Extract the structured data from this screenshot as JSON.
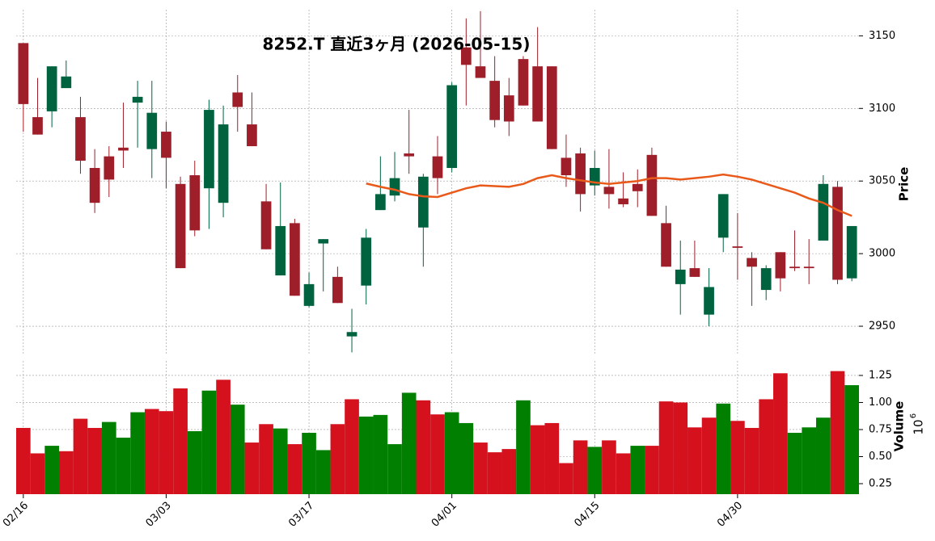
{
  "chart_data": {
    "type": "candlestick",
    "title": "8252.T  直近3ヶ月  (2026-05-15)",
    "ylabel": "Price",
    "y2label": "Volume",
    "y2_offset": {
      "base": "10",
      "exponent": "6"
    },
    "categories": [
      "02/16",
      null,
      null,
      null,
      null,
      null,
      null,
      null,
      null,
      null,
      "03/03",
      null,
      null,
      null,
      null,
      null,
      null,
      null,
      null,
      null,
      "03/17",
      null,
      null,
      null,
      null,
      null,
      null,
      null,
      null,
      null,
      "04/01",
      null,
      null,
      null,
      null,
      null,
      null,
      null,
      null,
      null,
      "04/15",
      null,
      null,
      null,
      null,
      null,
      null,
      null,
      null,
      null,
      "04/30",
      null,
      null,
      null,
      null,
      null,
      null,
      null,
      null
    ],
    "open": [
      3145,
      3094,
      3098,
      3114,
      3094,
      3059,
      3067,
      3073,
      3104,
      3072,
      3084,
      3048,
      3054,
      3045,
      3035,
      3111,
      3089,
      3036,
      2985,
      3021,
      2964,
      3007,
      2984,
      2943,
      2978,
      3030,
      3040,
      3069,
      3018,
      3067,
      3059,
      3142,
      3129,
      3119,
      3109,
      3134,
      3129,
      3129,
      3066,
      3069,
      3047,
      3046,
      3038,
      3048,
      3068,
      3021,
      2979,
      2990,
      2958,
      3011,
      3005,
      2997,
      2975,
      3001,
      2991,
      2991,
      3009,
      3046,
      2983
    ],
    "high": [
      3145,
      3121,
      3129,
      3133,
      3108,
      3072,
      3074,
      3104,
      3119,
      3119,
      3091,
      3053,
      3064,
      3106,
      3102,
      3123,
      3111,
      3048,
      3049,
      3024,
      2987,
      3010,
      2991,
      2962,
      3017,
      3067,
      3070,
      3099,
      3055,
      3081,
      3118,
      3162,
      3167,
      3136,
      3121,
      3136,
      3156,
      3129,
      3082,
      3073,
      3071,
      3072,
      3056,
      3058,
      3073,
      3033,
      3009,
      3009,
      2990,
      3041,
      3028,
      3001,
      2992,
      3001,
      3016,
      3010,
      3054,
      3050,
      3019
    ],
    "low": [
      3084,
      3082,
      3087,
      3114,
      3055,
      3028,
      3039,
      3059,
      3073,
      3052,
      3045,
      2990,
      3012,
      3017,
      3025,
      3084,
      3074,
      3003,
      2985,
      2971,
      2963,
      2974,
      2966,
      2932,
      2965,
      3030,
      3036,
      3055,
      2991,
      3041,
      3056,
      3102,
      3121,
      3087,
      3081,
      3102,
      3091,
      3072,
      3046,
      3029,
      3040,
      3031,
      3032,
      3032,
      3026,
      2991,
      2958,
      2984,
      2950,
      3001,
      2982,
      2964,
      2968,
      2974,
      2988,
      2979,
      3009,
      2979,
      2981
    ],
    "close": [
      3103,
      3082,
      3129,
      3122,
      3064,
      3035,
      3051,
      3071,
      3108,
      3097,
      3066,
      2990,
      3016,
      3099,
      3089,
      3101,
      3074,
      3003,
      3019,
      2971,
      2979,
      3010,
      2966,
      2946,
      3011,
      3041,
      3052,
      3067,
      3053,
      3052,
      3116,
      3130,
      3121,
      3092,
      3091,
      3102,
      3091,
      3072,
      3054,
      3041,
      3059,
      3041,
      3034,
      3043,
      3026,
      2991,
      2989,
      2984,
      2977,
      3041,
      3004,
      2991,
      2990,
      2983,
      2990,
      2990,
      3048,
      2982,
      3019
    ],
    "volume": [
      0.765,
      0.53,
      0.6,
      0.55,
      0.85,
      0.765,
      0.82,
      0.675,
      0.91,
      0.94,
      0.92,
      1.13,
      0.735,
      1.11,
      1.21,
      0.98,
      0.63,
      0.8,
      0.76,
      0.615,
      0.72,
      0.56,
      0.8,
      1.03,
      0.87,
      0.885,
      0.615,
      1.09,
      1.02,
      0.89,
      0.91,
      0.81,
      0.63,
      0.54,
      0.57,
      1.02,
      0.79,
      0.81,
      0.44,
      0.65,
      0.59,
      0.65,
      0.53,
      0.6,
      0.6,
      1.01,
      1.0,
      0.77,
      0.86,
      0.99,
      0.83,
      0.765,
      1.03,
      1.27,
      0.72,
      0.77,
      0.86,
      1.29,
      1.16
    ],
    "ma": [
      null,
      null,
      null,
      null,
      null,
      null,
      null,
      null,
      null,
      null,
      null,
      null,
      null,
      null,
      null,
      null,
      null,
      null,
      null,
      null,
      null,
      null,
      null,
      null,
      3048.3,
      3046,
      3044,
      3041,
      3039.5,
      3039,
      3042,
      3045,
      3047,
      3046.5,
      3046,
      3048,
      3052,
      3054,
      3052,
      3050.5,
      3049,
      3048,
      3049,
      3050,
      3052,
      3052,
      3051,
      3052,
      3053,
      3054.5,
      3053,
      3051,
      3048,
      3045,
      3042,
      3038,
      3035,
      3030,
      3026
    ],
    "ylim": [
      2930,
      3168
    ],
    "yticks": [
      2950,
      3000,
      3050,
      3100,
      3150
    ],
    "y2lim": [
      0.153,
      1.384
    ],
    "y2ticks": [
      0.25,
      {
        "value": 0.5,
        "label": "0.50"
      },
      0.75,
      {
        "value": 1,
        "label": "1.00"
      },
      1.25
    ],
    "grid": true,
    "up_color": "#006340",
    "down_color": "#9e1f2a",
    "volume_up_color": "#007f00",
    "volume_down_color": "#d4111d",
    "ma_color": "#e8591a"
  }
}
